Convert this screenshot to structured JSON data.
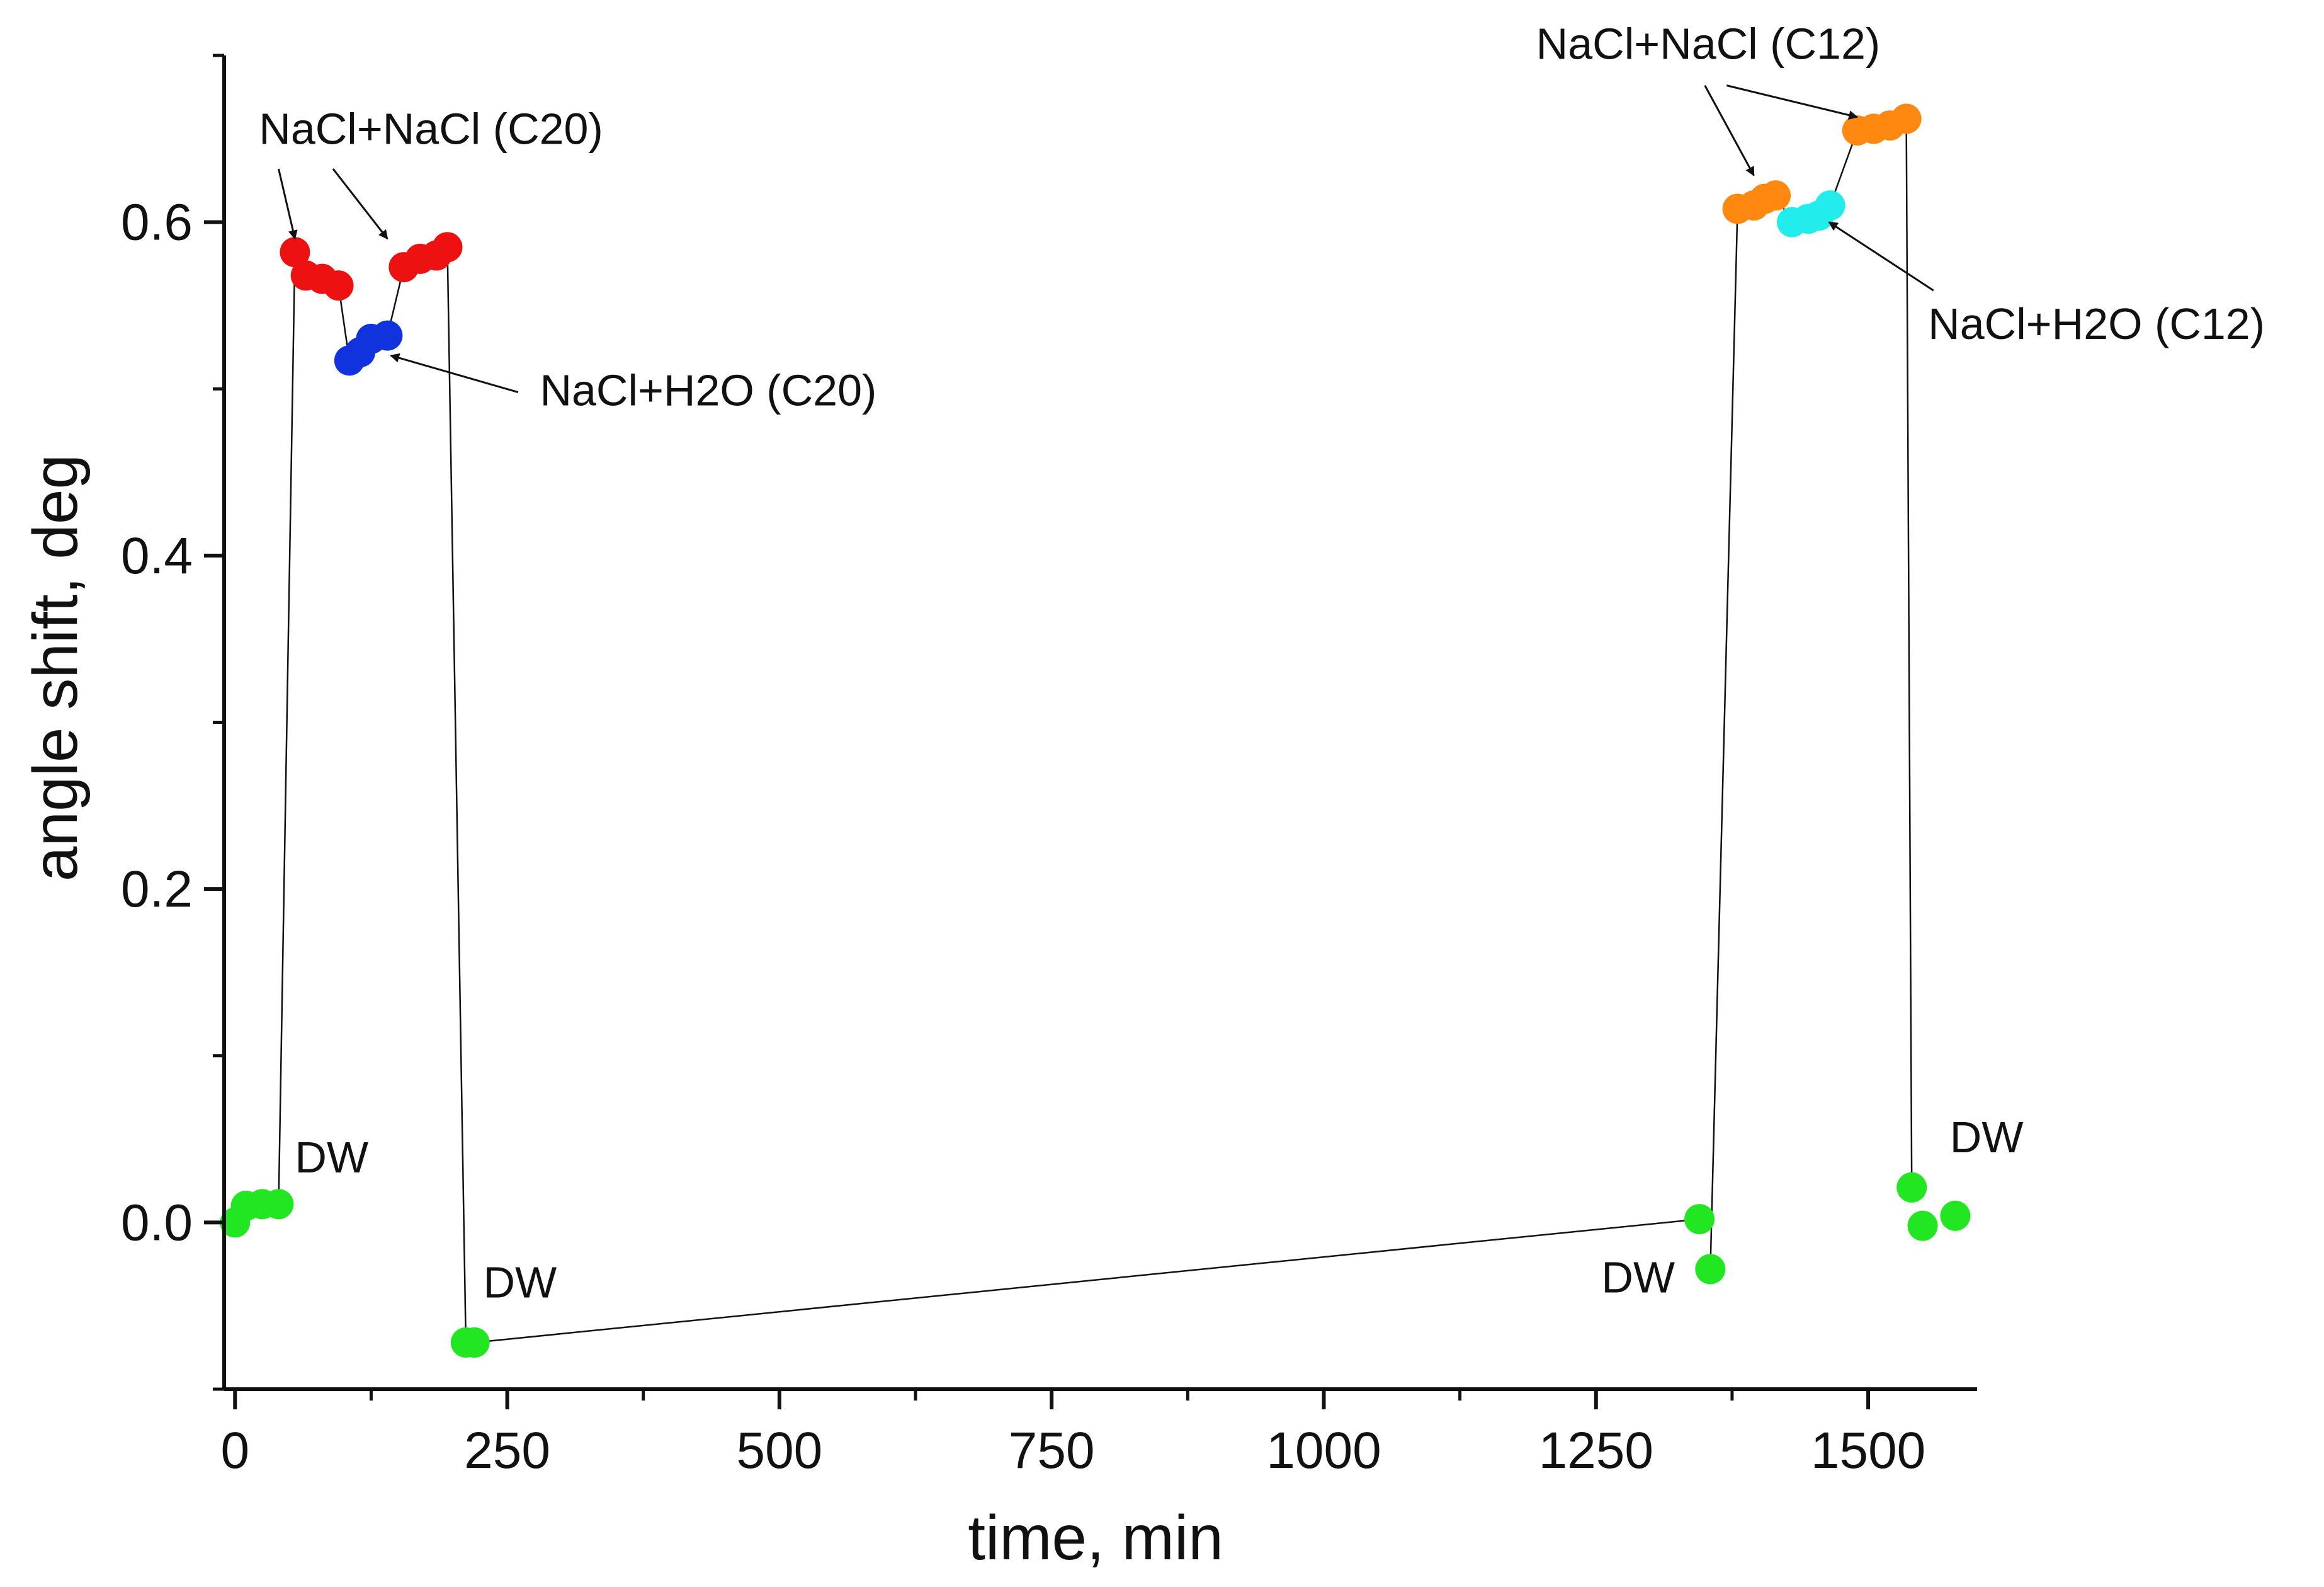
{
  "chart_data": {
    "type": "scatter",
    "title": "",
    "xlabel": "time, min",
    "ylabel": "angle shift, deg",
    "xlim": [
      -10,
      1600
    ],
    "ylim": [
      -0.1,
      0.7
    ],
    "xticks": [
      0,
      250,
      500,
      750,
      1000,
      1250,
      1500
    ],
    "xtick_labels": [
      "0",
      "250",
      "500",
      "750",
      "1000",
      "1250",
      "1500"
    ],
    "yticks": [
      0.0,
      0.2,
      0.4,
      0.6
    ],
    "ytick_labels": [
      "0.0",
      "0.2",
      "0.4",
      "0.6"
    ],
    "grid": false,
    "series": [
      {
        "name": "DW",
        "color": "#22e622",
        "points": [
          [
            0,
            0.0
          ],
          [
            10,
            0.01
          ],
          [
            25,
            0.011
          ],
          [
            40,
            0.011
          ]
        ]
      },
      {
        "name": "NaCl+NaCl (C20)",
        "color": "#ee1111",
        "points": [
          [
            55,
            0.582
          ],
          [
            65,
            0.568
          ],
          [
            80,
            0.566
          ],
          [
            95,
            0.562
          ]
        ]
      },
      {
        "name": "NaCl+H2O (C20)",
        "color": "#1133dd",
        "points": [
          [
            105,
            0.517
          ],
          [
            115,
            0.522
          ],
          [
            125,
            0.53
          ],
          [
            140,
            0.532
          ]
        ]
      },
      {
        "name": "NaCl+NaCl (C20)",
        "color": "#ee1111",
        "points": [
          [
            155,
            0.573
          ],
          [
            170,
            0.578
          ],
          [
            185,
            0.58
          ],
          [
            195,
            0.585
          ]
        ]
      },
      {
        "name": "DW",
        "color": "#22e622",
        "points": [
          [
            212,
            -0.072
          ],
          [
            220,
            -0.072
          ]
        ]
      },
      {
        "name": "DW",
        "color": "#22e622",
        "points": [
          [
            1345,
            0.002
          ],
          [
            1355,
            -0.028
          ]
        ]
      },
      {
        "name": "NaCl+NaCl (C12)",
        "color": "#ff8811",
        "points": [
          [
            1380,
            0.608
          ],
          [
            1395,
            0.61
          ],
          [
            1405,
            0.614
          ],
          [
            1415,
            0.616
          ]
        ]
      },
      {
        "name": "NaCl+H2O (C12)",
        "color": "#22ecec",
        "points": [
          [
            1430,
            0.6
          ],
          [
            1445,
            0.602
          ],
          [
            1455,
            0.604
          ],
          [
            1465,
            0.61
          ]
        ]
      },
      {
        "name": "NaCl+NaCl (C12)",
        "color": "#ff8811",
        "points": [
          [
            1490,
            0.655
          ],
          [
            1505,
            0.656
          ],
          [
            1520,
            0.658
          ],
          [
            1535,
            0.662
          ]
        ]
      },
      {
        "name": "DW",
        "color": "#22e622",
        "points": [
          [
            1540,
            0.021
          ],
          [
            1550,
            -0.002
          ],
          [
            1580,
            0.004
          ]
        ]
      }
    ],
    "connector_lines": [
      [
        [
          40,
          0.011
        ],
        [
          55,
          0.582
        ]
      ],
      [
        [
          95,
          0.562
        ],
        [
          105,
          0.517
        ]
      ],
      [
        [
          140,
          0.532
        ],
        [
          155,
          0.573
        ]
      ],
      [
        [
          195,
          0.585
        ],
        [
          212,
          -0.072
        ]
      ],
      [
        [
          220,
          -0.072
        ],
        [
          1345,
          0.002
        ]
      ],
      [
        [
          1355,
          -0.028
        ],
        [
          1380,
          0.608
        ]
      ],
      [
        [
          1415,
          0.616
        ],
        [
          1430,
          0.6
        ]
      ],
      [
        [
          1465,
          0.61
        ],
        [
          1490,
          0.655
        ]
      ],
      [
        [
          1535,
          0.662
        ],
        [
          1540,
          0.021
        ]
      ]
    ],
    "annotations": [
      {
        "text": "NaCl+NaCl (C20)",
        "x": 180,
        "y": 0.647,
        "anchor": "middle",
        "arrows": [
          [
            [
              40,
              0.632
            ],
            [
              55,
              0.59
            ]
          ],
          [
            [
              90,
              0.632
            ],
            [
              140,
              0.59
            ]
          ]
        ]
      },
      {
        "text": "NaCl+H2O (C20)",
        "x": 280,
        "y": 0.49,
        "anchor": "start",
        "arrows": [
          [
            [
              260,
              0.498
            ],
            [
              143,
              0.52
            ]
          ]
        ]
      },
      {
        "text": "NaCl+NaCl (C12)",
        "x": 1195,
        "y": 0.698,
        "anchor": "start",
        "arrows": [
          [
            [
              1350,
              0.682
            ],
            [
              1395,
              0.628
            ]
          ],
          [
            [
              1370,
              0.682
            ],
            [
              1490,
              0.663
            ]
          ]
        ]
      },
      {
        "text": "NaCl+H2O (C12)",
        "x": 1555,
        "y": 0.53,
        "anchor": "start",
        "arrows": [
          [
            [
              1560,
              0.559
            ],
            [
              1464,
              0.6
            ]
          ]
        ]
      },
      {
        "text": "DW",
        "x": 55,
        "y": 0.03,
        "anchor": "start",
        "arrows": []
      },
      {
        "text": "DW",
        "x": 228,
        "y": -0.045,
        "anchor": "start",
        "arrows": []
      },
      {
        "text": "DW",
        "x": 1255,
        "y": -0.042,
        "anchor": "start",
        "arrows": []
      },
      {
        "text": "DW",
        "x": 1575,
        "y": 0.042,
        "anchor": "start",
        "arrows": []
      }
    ]
  }
}
